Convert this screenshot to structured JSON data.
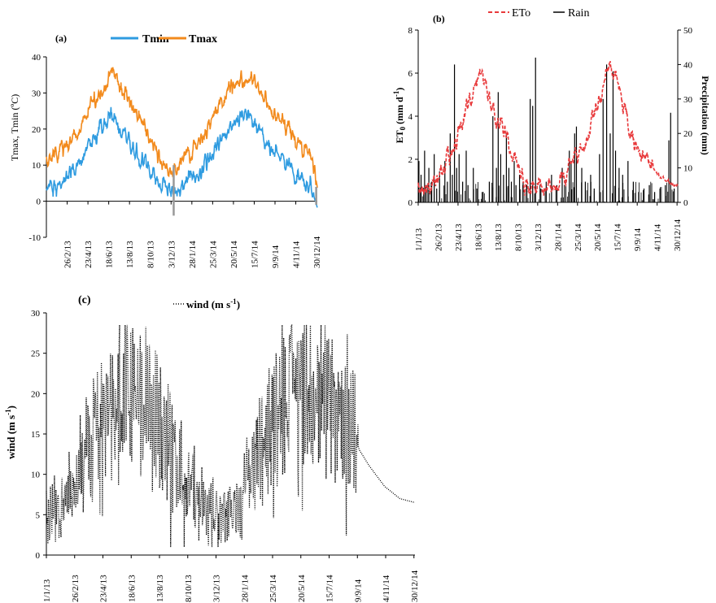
{
  "chart_data": [
    {
      "panel": "(a)",
      "type": "line",
      "ylabel": "Tmax, Tmin (ºC)",
      "ylim": [
        -10,
        40
      ],
      "yticks": [
        -10,
        0,
        10,
        20,
        30,
        40
      ],
      "x_tick_labels": [
        "26/2/13",
        "23/4/13",
        "18/6/13",
        "13/8/13",
        "8/10/13",
        "3/12/13",
        "28/1/14",
        "25/3/14",
        "20/5/14",
        "15/7/14",
        "9/9/14",
        "4/11/14",
        "30/12/14"
      ],
      "series": [
        {
          "name": "Tmin",
          "color": "#2e9be0",
          "anchors": [
            [
              0,
              4
            ],
            [
              30,
              4
            ],
            [
              60,
              7
            ],
            [
              100,
              12
            ],
            [
              150,
              21
            ],
            [
              175,
              24
            ],
            [
              200,
              20
            ],
            [
              240,
              14
            ],
            [
              300,
              6
            ],
            [
              320,
              4
            ],
            [
              335,
              3
            ],
            [
              360,
              4
            ],
            [
              400,
              7
            ],
            [
              440,
              12
            ],
            [
              490,
              20
            ],
            [
              540,
              24
            ],
            [
              570,
              20
            ],
            [
              600,
              15
            ],
            [
              650,
              10
            ],
            [
              690,
              5
            ],
            [
              712,
              4
            ],
            [
              730,
              -1
            ]
          ]
        },
        {
          "name": "Tmax",
          "color": "#f28a1c",
          "anchors": [
            [
              0,
              12
            ],
            [
              30,
              13
            ],
            [
              60,
              16
            ],
            [
              100,
              23
            ],
            [
              150,
              31
            ],
            [
              175,
              35
            ],
            [
              200,
              32
            ],
            [
              240,
              25
            ],
            [
              300,
              13
            ],
            [
              320,
              10
            ],
            [
              335,
              9
            ],
            [
              360,
              10
            ],
            [
              400,
              15
            ],
            [
              440,
              21
            ],
            [
              490,
              31
            ],
            [
              540,
              35
            ],
            [
              570,
              32
            ],
            [
              600,
              27
            ],
            [
              650,
              20
            ],
            [
              690,
              14
            ],
            [
              712,
              13
            ],
            [
              730,
              5
            ]
          ]
        }
      ]
    },
    {
      "panel": "(b)",
      "type": "line+bar",
      "ylabel_left": "ET0 (mm d-1)",
      "ylabel_right": "Precipitation (mm)",
      "ylim_left": [
        0,
        8
      ],
      "yticks_left": [
        0,
        2,
        4,
        6,
        8
      ],
      "ylim_right": [
        0,
        50
      ],
      "yticks_right": [
        0,
        10,
        20,
        30,
        40,
        50
      ],
      "x_tick_labels": [
        "1/1/13",
        "26/2/13",
        "23/4/13",
        "18/6/13",
        "13/8/13",
        "8/10/13",
        "3/12/13",
        "28/1/14",
        "25/3/14",
        "20/5/14",
        "15/7/14",
        "9/9/14",
        "4/11/14",
        "30/12/14"
      ],
      "series": [
        {
          "name": "ETo",
          "color": "#e8393b",
          "style": "dashed",
          "anchors": [
            [
              0,
              0.8
            ],
            [
              40,
              1.0
            ],
            [
              80,
              2.0
            ],
            [
              110,
              3.0
            ],
            [
              150,
              5.0
            ],
            [
              175,
              6.2
            ],
            [
              195,
              5.2
            ],
            [
              220,
              4.0
            ],
            [
              250,
              3.0
            ],
            [
              280,
              1.5
            ],
            [
              300,
              0.8
            ],
            [
              330,
              0.7
            ],
            [
              365,
              0.7
            ],
            [
              400,
              1.0
            ],
            [
              430,
              1.7
            ],
            [
              470,
              3.0
            ],
            [
              500,
              4.5
            ],
            [
              530,
              5.8
            ],
            [
              545,
              6.3
            ],
            [
              560,
              5.5
            ],
            [
              580,
              4.2
            ],
            [
              600,
              3.0
            ],
            [
              640,
              2.0
            ],
            [
              680,
              1.2
            ],
            [
              710,
              0.9
            ],
            [
              730,
              0.8
            ]
          ]
        },
        {
          "name": "Rain",
          "color": "#000000",
          "style": "spikes",
          "spikes": [
            [
              2,
              12
            ],
            [
              8,
              8
            ],
            [
              18,
              15
            ],
            [
              22,
              5
            ],
            [
              30,
              10
            ],
            [
              38,
              6
            ],
            [
              45,
              14
            ],
            [
              52,
              4
            ],
            [
              60,
              9
            ],
            [
              75,
              12
            ],
            [
              82,
              6
            ],
            [
              90,
              20
            ],
            [
              96,
              8
            ],
            [
              102,
              40
            ],
            [
              108,
              10
            ],
            [
              115,
              14
            ],
            [
              125,
              6
            ],
            [
              135,
              15
            ],
            [
              140,
              5
            ],
            [
              155,
              10
            ],
            [
              165,
              4
            ],
            [
              180,
              3
            ],
            [
              200,
              6
            ],
            [
              210,
              25
            ],
            [
              220,
              10
            ],
            [
              225,
              32
            ],
            [
              232,
              14
            ],
            [
              240,
              8
            ],
            [
              248,
              20
            ],
            [
              255,
              10
            ],
            [
              262,
              6
            ],
            [
              270,
              12
            ],
            [
              275,
              5
            ],
            [
              285,
              8
            ],
            [
              295,
              6
            ],
            [
              305,
              5
            ],
            [
              315,
              30
            ],
            [
              322,
              28
            ],
            [
              330,
              42
            ],
            [
              345,
              4
            ],
            [
              360,
              6
            ],
            [
              375,
              8
            ],
            [
              390,
              5
            ],
            [
              405,
              10
            ],
            [
              415,
              6
            ],
            [
              425,
              15
            ],
            [
              430,
              12
            ],
            [
              440,
              20
            ],
            [
              445,
              22
            ],
            [
              460,
              10
            ],
            [
              470,
              6
            ],
            [
              485,
              8
            ],
            [
              495,
              4
            ],
            [
              510,
              14
            ],
            [
              520,
              30
            ],
            [
              530,
              40
            ],
            [
              540,
              20
            ],
            [
              548,
              38
            ],
            [
              555,
              15
            ],
            [
              565,
              10
            ],
            [
              575,
              8
            ],
            [
              590,
              12
            ],
            [
              605,
              6
            ],
            [
              620,
              3
            ],
            [
              635,
              4
            ],
            [
              650,
              5
            ],
            [
              665,
              3
            ],
            [
              680,
              4
            ],
            [
              695,
              5
            ],
            [
              705,
              18
            ],
            [
              710,
              26
            ],
            [
              720,
              4
            ]
          ]
        }
      ]
    },
    {
      "panel": "(c)",
      "type": "line",
      "ylabel": "wind (m s-1)",
      "ylim": [
        0,
        30
      ],
      "yticks": [
        0,
        5,
        10,
        15,
        20,
        25,
        30
      ],
      "x_tick_labels": [
        "1/1/13",
        "26/2/13",
        "23/4/13",
        "18/6/13",
        "13/8/13",
        "8/10/13",
        "3/12/13",
        "28/1/14",
        "25/3/14",
        "20/5/14",
        "15/7/14",
        "9/9/14",
        "4/11/14",
        "30/12/14"
      ],
      "series": [
        {
          "name": "wind",
          "color": "#000000",
          "style": "dotted",
          "anchors": [
            [
              0,
              5
            ],
            [
              30,
              6
            ],
            [
              60,
              10
            ],
            [
              90,
              14
            ],
            [
              110,
              17
            ],
            [
              140,
              20
            ],
            [
              165,
              21
            ],
            [
              190,
              19
            ],
            [
              220,
              17
            ],
            [
              250,
              13
            ],
            [
              280,
              9
            ],
            [
              310,
              6
            ],
            [
              335,
              5
            ],
            [
              360,
              5
            ],
            [
              380,
              6
            ],
            [
              400,
              10
            ],
            [
              425,
              14
            ],
            [
              450,
              18
            ],
            [
              475,
              21
            ],
            [
              500,
              22
            ],
            [
              530,
              21
            ],
            [
              560,
              20
            ],
            [
              590,
              18
            ],
            [
              610,
              15
            ],
            [
              620,
              13
            ],
            [
              640,
              11
            ],
            [
              670,
              8.5
            ],
            [
              700,
              7
            ],
            [
              730,
              6.5
            ]
          ],
          "data_end_day": 618
        }
      ]
    }
  ],
  "panels": {
    "a": {
      "label": "(a)",
      "legend": [
        "Tmin",
        "Tmax"
      ]
    },
    "b": {
      "label": "(b)",
      "legend": [
        "ETo",
        "Rain"
      ]
    },
    "c": {
      "label": "(c)",
      "legend": [
        "wind (m s"
      ],
      "legend_sup": "-1",
      "legend_close": ")"
    }
  },
  "axes_text": {
    "a_ylabel": "Tmax, Tmin (ºC)",
    "b_ylabel_main": "ET",
    "b_ylabel_sub": "0",
    "b_ylabel_unit": "(mm d",
    "b_ylabel_sup": "-1",
    "b_ylabel_close": ")",
    "b_ylabel_right": "Precipitation (mm)",
    "c_ylabel_main": "wind (m s",
    "c_ylabel_sup": "-1",
    "c_ylabel_close": ")"
  },
  "colors": {
    "tmin": "#2e9be0",
    "tmax": "#f28a1c",
    "eto": "#e8393b",
    "rain": "#000000",
    "wind": "#000000",
    "gap": "#999999"
  }
}
